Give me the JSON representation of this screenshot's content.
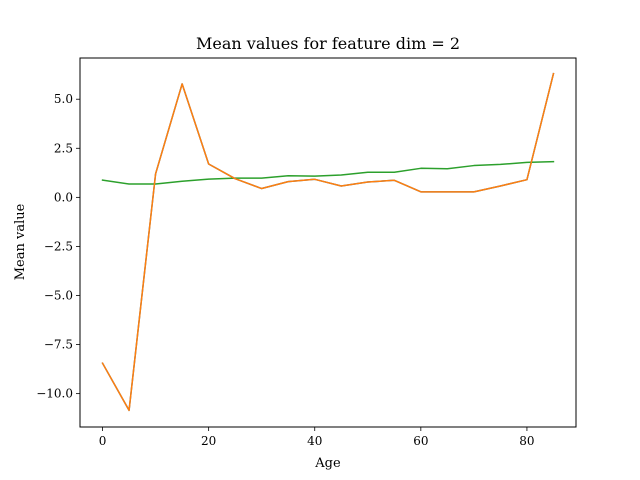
{
  "chart_data": {
    "type": "line",
    "title": "Mean values for feature dim = 2",
    "xlabel": "Age",
    "ylabel": "Mean value",
    "x": [
      0,
      5,
      10,
      15,
      20,
      25,
      30,
      35,
      40,
      45,
      50,
      55,
      60,
      65,
      70,
      75,
      80,
      85
    ],
    "xlim": [
      -4.25,
      89.25
    ],
    "ylim": [
      -11.7,
      7.1
    ],
    "xticks": [
      0,
      20,
      40,
      60,
      80
    ],
    "xtick_labels": [
      "0",
      "20",
      "40",
      "60",
      "80"
    ],
    "yticks": [
      -10.0,
      -7.5,
      -5.0,
      -2.5,
      0.0,
      2.5,
      5.0
    ],
    "ytick_labels": [
      "−10.0",
      "−7.5",
      "−5.0",
      "−2.5",
      "0.0",
      "2.5",
      "5.0"
    ],
    "grid": false,
    "legend": "none",
    "series": [
      {
        "color": "#2ca02c",
        "values": [
          0.88,
          0.68,
          0.68,
          0.82,
          0.93,
          0.98,
          0.98,
          1.1,
          1.08,
          1.14,
          1.28,
          1.28,
          1.48,
          1.46,
          1.62,
          1.68,
          1.78,
          1.82
        ]
      },
      {
        "color": "#1f77b4",
        "values": [
          -8.45,
          -10.85,
          1.2,
          5.78,
          1.7,
          0.95,
          0.45,
          0.8,
          0.92,
          0.58,
          0.78,
          0.87,
          0.28,
          0.28,
          0.28,
          0.58,
          0.9,
          6.3
        ]
      },
      {
        "color": "#ff7f0e",
        "values": [
          -8.45,
          -10.85,
          1.2,
          5.78,
          1.7,
          0.95,
          0.45,
          0.8,
          0.92,
          0.58,
          0.78,
          0.87,
          0.28,
          0.28,
          0.28,
          0.58,
          0.9,
          6.3
        ]
      }
    ]
  }
}
